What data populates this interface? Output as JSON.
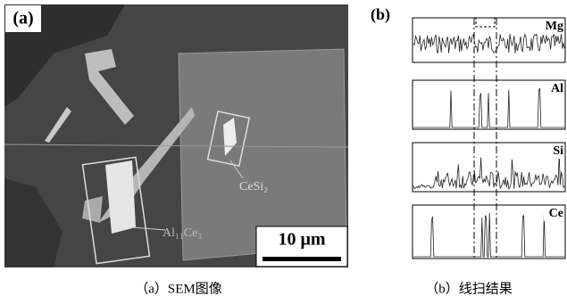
{
  "panel_a": {
    "label": "(a)",
    "scale_bar": "10 μm",
    "phase_1": "CeSi₂",
    "phase_2": "Al₁₁Ce₃",
    "caption": "（a）SEM图像"
  },
  "panel_b": {
    "label": "(b)",
    "elements": [
      "Mg",
      "Al",
      "Si",
      "Ce"
    ],
    "caption": "（b）线扫结果"
  }
}
